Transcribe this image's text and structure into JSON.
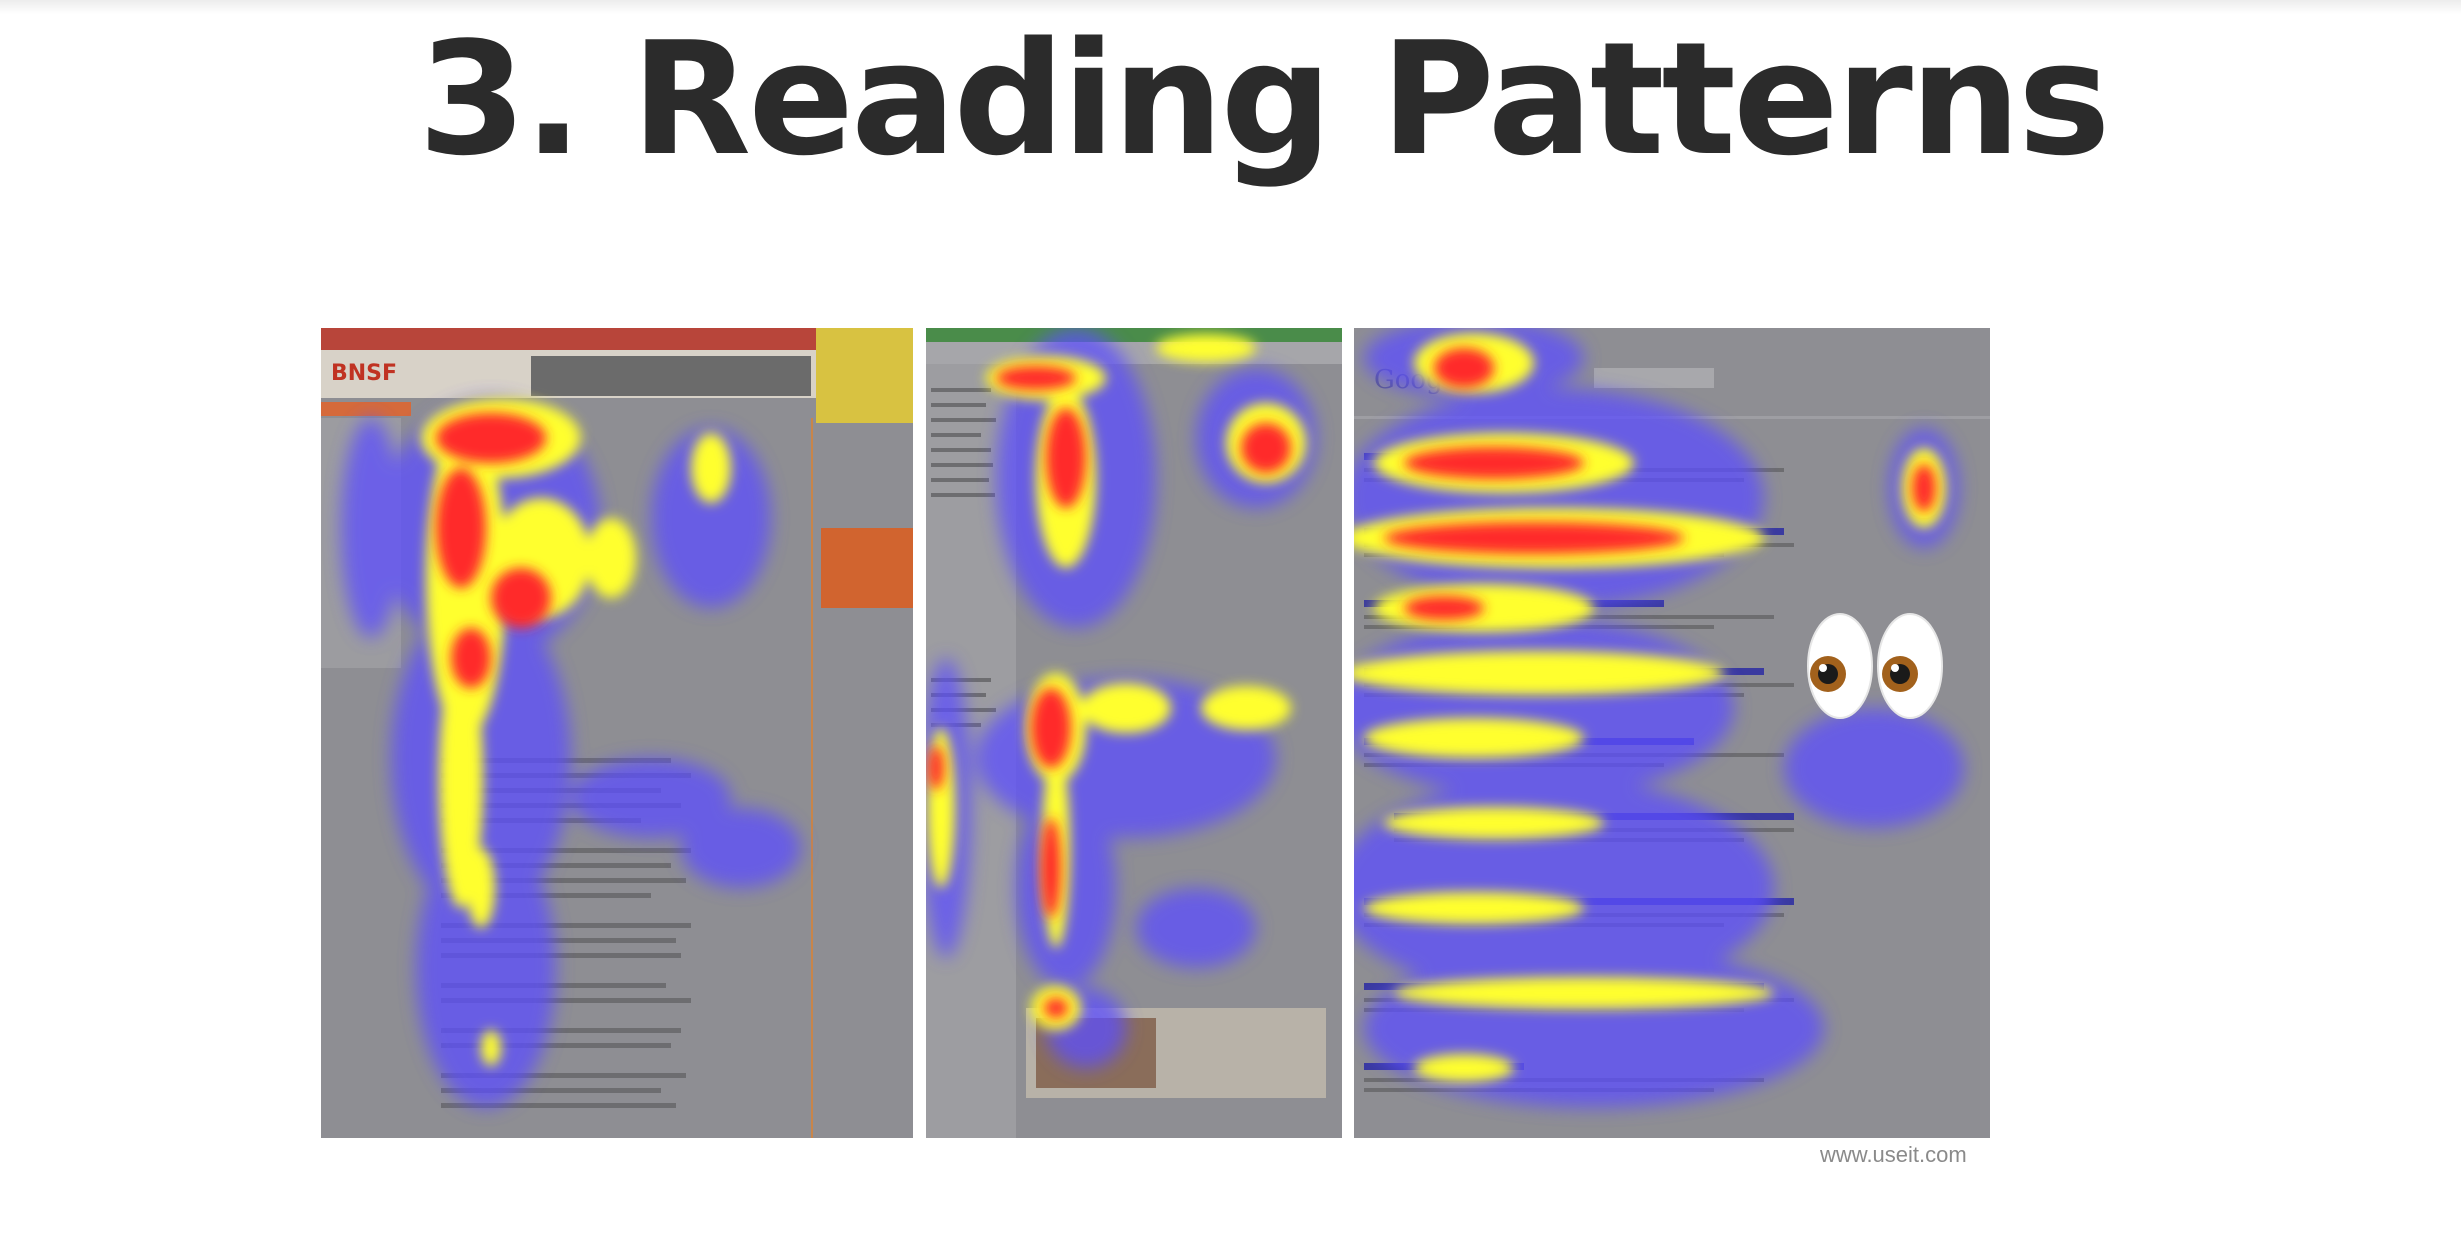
{
  "slide": {
    "title": "3. Reading Patterns",
    "source_credit": "www.useit.com"
  },
  "figure": {
    "panels": [
      {
        "name": "heatmap-panel-corporate-site"
      },
      {
        "name": "heatmap-panel-ecommerce-site"
      },
      {
        "name": "heatmap-panel-search-results"
      }
    ],
    "colors": {
      "panel_gray": "#8e8e93",
      "heat_cold": "#5b4dff",
      "heat_warm": "#ffff2e",
      "heat_hot": "#ff2a2a"
    }
  },
  "decorations": {
    "emoji_icon": "eyes-icon"
  }
}
